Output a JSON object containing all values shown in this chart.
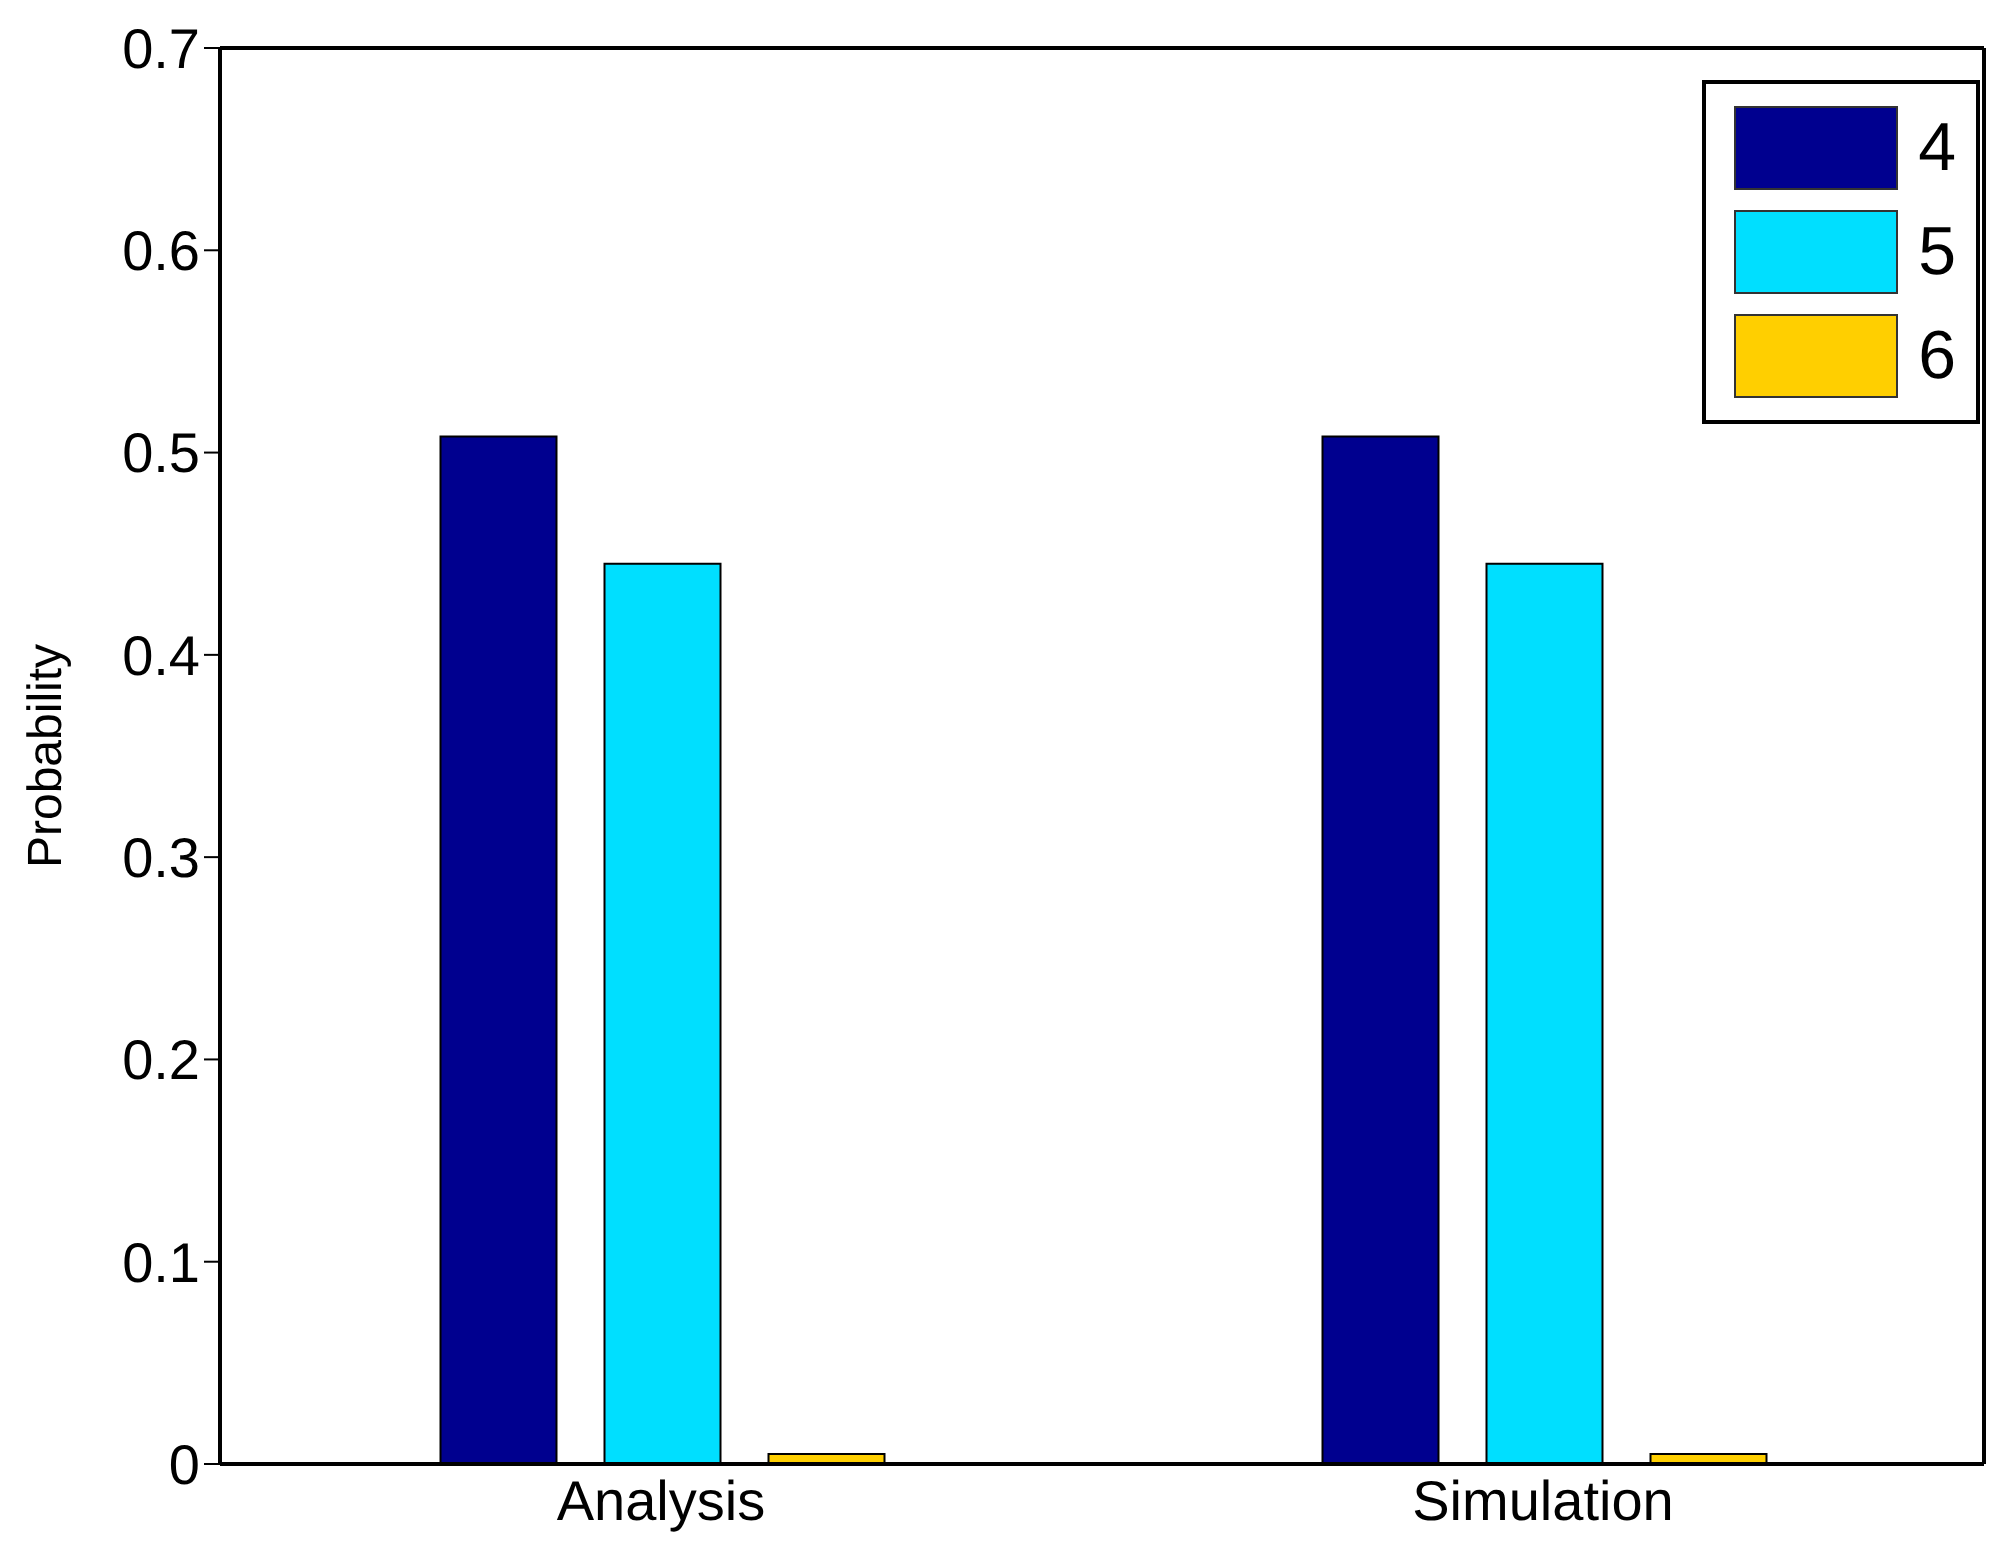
{
  "chart_data": {
    "type": "bar",
    "ylabel": "Probability",
    "categories": [
      "Analysis",
      "Simulation"
    ],
    "series": [
      {
        "name": "4",
        "color": "#00008f",
        "values": [
          0.508,
          0.508
        ]
      },
      {
        "name": "5",
        "color": "#00dfff",
        "values": [
          0.445,
          0.445
        ]
      },
      {
        "name": "6",
        "color": "#ffcf00",
        "values": [
          0.005,
          0.005
        ]
      }
    ],
    "ylim": [
      0,
      0.7
    ],
    "yticks": [
      0,
      0.1,
      0.2,
      0.3,
      0.4,
      0.5,
      0.6,
      0.7
    ],
    "grid": false,
    "legend": "top right"
  }
}
